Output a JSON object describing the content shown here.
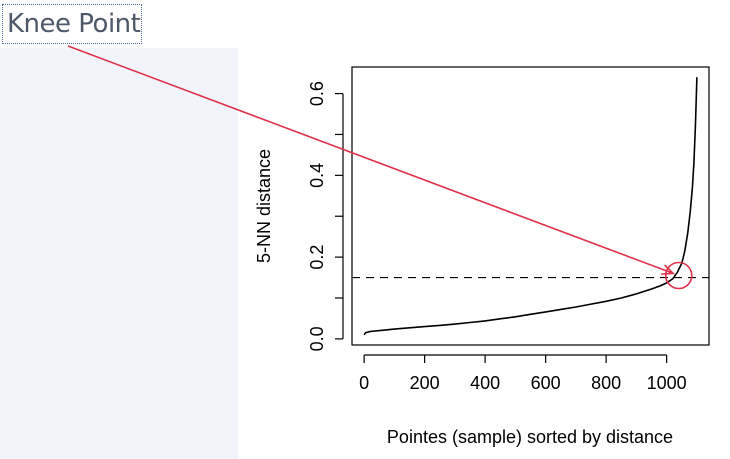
{
  "annotation": {
    "label": "Knee Point",
    "arrow_color": "#e0304a",
    "circle_color": "#e0304a"
  },
  "chart_data": {
    "type": "line",
    "xlabel": "Pointes (sample) sorted by distance",
    "ylabel": "5-NN distance",
    "xlim": [
      -40,
      1140
    ],
    "ylim": [
      -0.015,
      0.665
    ],
    "x_ticks": [
      0,
      200,
      400,
      600,
      800,
      1000
    ],
    "x_tick_labels": [
      "0",
      "200",
      "400",
      "600",
      "800",
      "1000"
    ],
    "y_ticks": [
      0.0,
      0.1,
      0.2,
      0.3,
      0.4,
      0.5,
      0.6
    ],
    "y_tick_labels": [
      "0.0",
      "",
      "0.2",
      "",
      "0.4",
      "",
      "0.6"
    ],
    "reference_line": {
      "y": 0.15,
      "style": "dashed"
    },
    "knee_point": {
      "x": 1040,
      "y": 0.155
    },
    "series": [
      {
        "x": [
          0,
          5,
          20,
          60,
          100,
          150,
          200,
          250,
          300,
          350,
          400,
          450,
          500,
          550,
          600,
          650,
          700,
          750,
          800,
          850,
          900,
          950,
          980,
          1000,
          1020,
          1035,
          1050,
          1060,
          1070,
          1078,
          1085,
          1090,
          1095,
          1100
        ],
        "y": [
          0.01,
          0.015,
          0.018,
          0.021,
          0.024,
          0.027,
          0.03,
          0.033,
          0.036,
          0.04,
          0.044,
          0.049,
          0.054,
          0.06,
          0.066,
          0.072,
          0.078,
          0.085,
          0.092,
          0.1,
          0.11,
          0.122,
          0.13,
          0.137,
          0.147,
          0.162,
          0.185,
          0.215,
          0.26,
          0.31,
          0.37,
          0.43,
          0.52,
          0.64
        ]
      }
    ]
  }
}
